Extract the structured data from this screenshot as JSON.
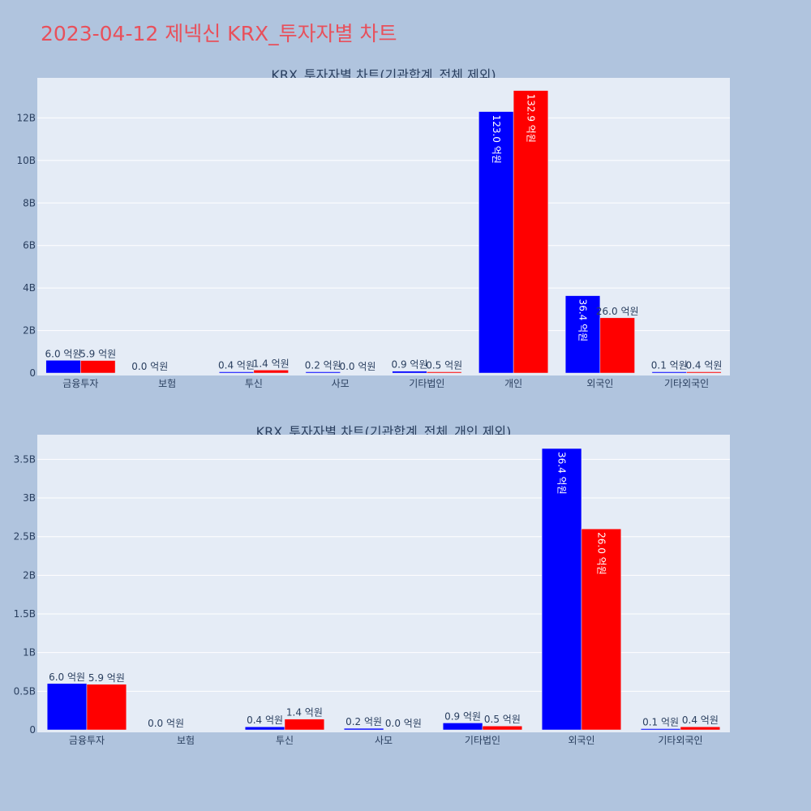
{
  "page": {
    "title": "2023-04-12 제넥신 KRX_투자자별 차트"
  },
  "colors": {
    "sell": "#0000ff",
    "buy": "#ff0000",
    "plot_bg": "#e5ecf6",
    "paper_bg": "#b0c4de",
    "title": "#e8505b",
    "grid": "#ffffff",
    "text": "#2a3f5f"
  },
  "chart_data": [
    {
      "type": "bar",
      "title": "KRX_투자자별 차트(기관합계_전체 제외)",
      "categories": [
        "금융투자",
        "보험",
        "투신",
        "사모",
        "기타법인",
        "개인",
        "외국인",
        "기타외국인"
      ],
      "series": [
        {
          "color": "#0000ff",
          "values": [
            600000000,
            0,
            40000000,
            20000000,
            90000000,
            12300000000,
            3640000000,
            10000000
          ],
          "labels": [
            "6.0 억원",
            "0.0 억원",
            "0.4 억원",
            "0.2 억원",
            "0.9 억원",
            "123.0 억원",
            "36.4 억원",
            "0.1 억원"
          ]
        },
        {
          "color": "#ff0000",
          "values": [
            590000000,
            0,
            140000000,
            0,
            50000000,
            13290000000,
            2600000000,
            40000000
          ],
          "labels": [
            "5.9 억원",
            "",
            "1.4 억원",
            "0.0 억원",
            "0.5 억원",
            "132.9 억원",
            "26.0 억원",
            "0.4 억원"
          ]
        }
      ],
      "yticks": [
        0,
        2000000000,
        4000000000,
        6000000000,
        8000000000,
        10000000000,
        12000000000
      ],
      "ytick_labels": [
        "0",
        "2B",
        "4B",
        "6B",
        "8B",
        "10B",
        "12B"
      ],
      "ylim": [
        0,
        14000000000
      ]
    },
    {
      "type": "bar",
      "title": "KRX_투자자별 차트(기관합계_전체_개인 제외)",
      "categories": [
        "금융투자",
        "보험",
        "투신",
        "사모",
        "기타법인",
        "외국인",
        "기타외국인"
      ],
      "series": [
        {
          "color": "#0000ff",
          "values": [
            600000000,
            0,
            40000000,
            20000000,
            90000000,
            3640000000,
            10000000
          ],
          "labels": [
            "6.0 억원",
            "0.0 억원",
            "0.4 억원",
            "0.2 억원",
            "0.9 억원",
            "36.4 억원",
            "0.1 억원"
          ]
        },
        {
          "color": "#ff0000",
          "values": [
            590000000,
            0,
            140000000,
            0,
            50000000,
            2600000000,
            40000000
          ],
          "labels": [
            "5.9 억원",
            "",
            "1.4 억원",
            "0.0 억원",
            "0.5 억원",
            "26.0 억원",
            "0.4 억원"
          ]
        }
      ],
      "yticks": [
        0,
        500000000,
        1000000000,
        1500000000,
        2000000000,
        2500000000,
        3000000000,
        3500000000
      ],
      "ytick_labels": [
        "0",
        "0.5B",
        "1B",
        "1.5B",
        "2B",
        "2.5B",
        "3B",
        "3.5B"
      ],
      "ylim": [
        0,
        3850000000
      ]
    }
  ]
}
